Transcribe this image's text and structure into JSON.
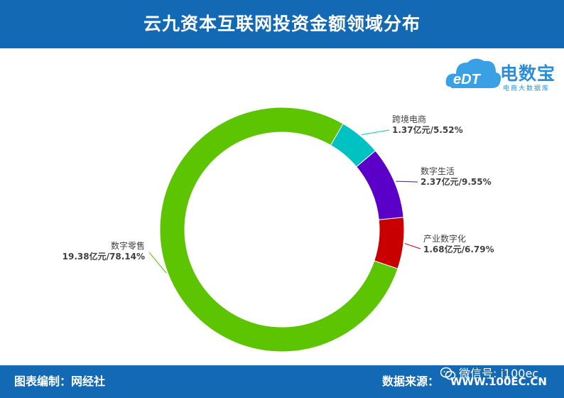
{
  "header": {
    "title": "云九资本互联网投资金额领域分布"
  },
  "logo": {
    "mark": "eDT",
    "name": "电数宝",
    "tagline": "电商大数据库"
  },
  "footer": {
    "compiled_by": "图表编制：网经社",
    "source_label": "数据来源：",
    "source_url": "WWW.100EC.CN",
    "wechat": "微信号: i100ec"
  },
  "colors": {
    "header_bg": "#1369b4",
    "数字零售": "#5cc400",
    "跨境电商": "#00c2c2",
    "数字生活": "#5b00c8",
    "产业数字化": "#c80000"
  },
  "chart_data": {
    "type": "pie",
    "variant": "donut",
    "title": "云九资本互联网投资金额领域分布",
    "unit": "亿元",
    "legend": "none (callout labels)",
    "series": [
      {
        "name": "数字零售",
        "value": 19.38,
        "percent": 78.14,
        "label": "19.38亿元/78.14%",
        "color": "#5cc400"
      },
      {
        "name": "跨境电商",
        "value": 1.37,
        "percent": 5.52,
        "label": "1.37亿元/5.52%",
        "color": "#00c2c2"
      },
      {
        "name": "数字生活",
        "value": 2.37,
        "percent": 9.55,
        "label": "2.37亿元/9.55%",
        "color": "#5b00c8"
      },
      {
        "name": "产业数字化",
        "value": 1.68,
        "percent": 6.79,
        "label": "1.68亿元/6.79%",
        "color": "#c80000"
      }
    ]
  }
}
